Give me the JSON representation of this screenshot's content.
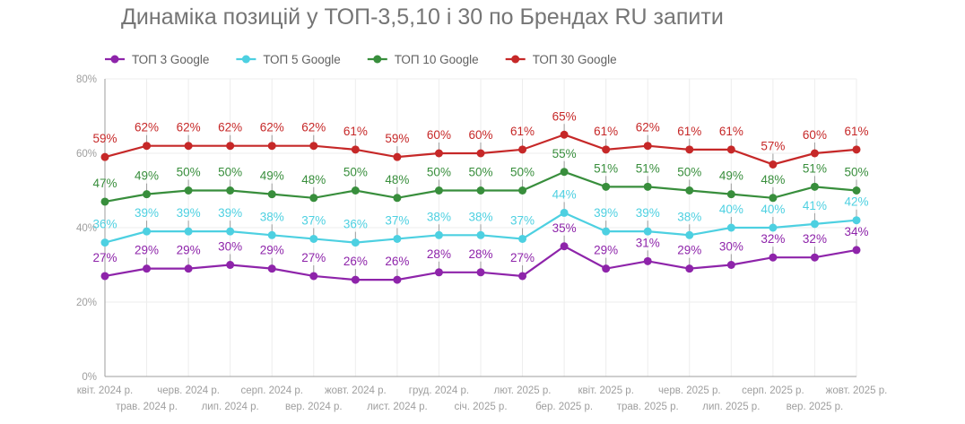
{
  "chart_data": {
    "type": "line",
    "title": "Динаміка позицій у ТОП-3,5,10 і 30 по Брендах RU запити",
    "xlabel": "",
    "ylabel": "",
    "ylim": [
      0,
      80
    ],
    "yticks": [
      "0%",
      "20%",
      "40%",
      "60%",
      "80%"
    ],
    "grid": true,
    "legend_position": "top-left",
    "categories": [
      "квіт. 2024 р.",
      "трав. 2024 р.",
      "черв. 2024 р.",
      "лип. 2024 р.",
      "серп. 2024 р.",
      "вер. 2024 р.",
      "жовт. 2024 р.",
      "лист. 2024 р.",
      "груд. 2024 р.",
      "січ. 2025 р.",
      "лют. 2025 р.",
      "бер. 2025 р.",
      "квіт. 2025 р.",
      "трав. 2025 р.",
      "черв. 2025 р.",
      "лип. 2025 р.",
      "серп. 2025 р.",
      "вер. 2025 р.",
      "жовт. 2025 р."
    ],
    "series": [
      {
        "name": "ТОП 3 Google",
        "color": "#8e24aa",
        "values": [
          27,
          29,
          29,
          30,
          29,
          27,
          26,
          26,
          28,
          28,
          27,
          35,
          29,
          31,
          29,
          30,
          32,
          32,
          34
        ]
      },
      {
        "name": "ТОП 5 Google",
        "color": "#4dd0e1",
        "values": [
          36,
          39,
          39,
          39,
          38,
          37,
          36,
          37,
          38,
          38,
          37,
          44,
          39,
          39,
          38,
          40,
          40,
          41,
          42
        ]
      },
      {
        "name": "ТОП 10 Google",
        "color": "#388e3c",
        "values": [
          47,
          49,
          50,
          50,
          49,
          48,
          50,
          48,
          50,
          50,
          50,
          55,
          51,
          51,
          50,
          49,
          48,
          51,
          50
        ]
      },
      {
        "name": "ТОП 30 Google",
        "color": "#c62828",
        "values": [
          59,
          62,
          62,
          62,
          62,
          62,
          61,
          59,
          60,
          60,
          61,
          65,
          61,
          62,
          61,
          61,
          57,
          60,
          61
        ]
      }
    ]
  }
}
